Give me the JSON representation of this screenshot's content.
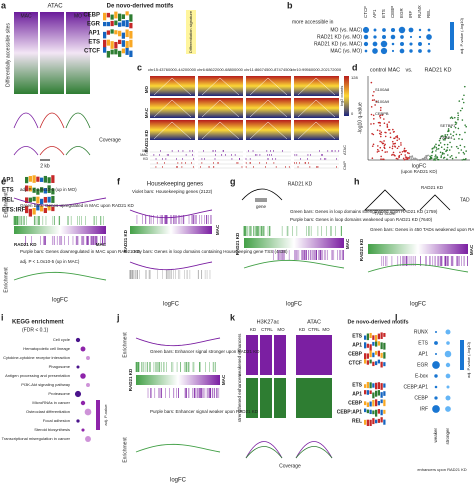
{
  "a": {
    "letter": "a",
    "atac": "ATAC",
    "mac": "MAC",
    "mo": "MO",
    "ylabel": "Differentially accessible sites",
    "coverage": "Coverage",
    "scale": "2 kb",
    "known": [
      "AP1",
      "ETS",
      "REL",
      "ETS:IRF"
    ],
    "denovo_title": "De novo-derived motifs",
    "denovo": [
      "CEBP",
      "EGR",
      "AP1",
      "ETS",
      "CTCF"
    ],
    "signature": "Differentiation signature"
  },
  "b": {
    "letter": "b",
    "header": "more accessible in",
    "rows": [
      "MO (vs. MAC)",
      "RAD21 KD (vs. MO)",
      "RAD21 KD (vs. MAC)",
      "MAC (vs. MO)"
    ],
    "cols": [
      "CTCF",
      "AP1",
      "ETS",
      "CEBP",
      "EGR",
      "IRF",
      "RUNX",
      "REL"
    ],
    "legend": "adj. P-value (-log10)"
  },
  "c": {
    "letter": "c",
    "regions": [
      "chr15:43760000-44200000",
      "chr6:68622000-68800000",
      "chr11:86674500-87474500",
      "chr10:99560000-202172000"
    ],
    "rows": [
      "MO",
      "MAC",
      "RAD21 KD"
    ],
    "tracks": [
      "MO",
      "MAC",
      "KD"
    ],
    "atac": "ATAC",
    "chip": "ChIP",
    "cmax": "128",
    "cmin": "0",
    "clabel": "log2 counts"
  },
  "d": {
    "letter": "d",
    "ctrl": "control MAC",
    "vs": "vs.",
    "kd": "RAD21 KD",
    "ylabel": "-log10 q-value",
    "xlabel": "logFC",
    "xsub": "(upon RAD21 KD)",
    "genes": [
      "S100A8",
      "S100A9",
      "CEBPB",
      "SETBP1",
      "FABP4"
    ]
  },
  "e": {
    "letter": "e",
    "ylabel": "Enrichment",
    "p1": "adj. P < 2.9x10-5 (up in MO)",
    "green": "Green bars: Genes upregulated in MAC upon RAD21 KD",
    "purple": "Purple bars: Genes downregulated in MAC upon RAD21 KD",
    "p2": "adj. P < 1.0x10-5 (up in MAC)",
    "xlabel": "logFC",
    "mac": "MAC",
    "kd": "RAD21 KD"
  },
  "f": {
    "letter": "f",
    "title": "Housekeeping genes",
    "violet": "Violet bars: Housekeeping genes (2122)",
    "gray": "Gray bars: Genes in loop domains containing Housekeeping gene TSS (4438)",
    "xlabel": "logFC",
    "mac": "MAC",
    "kd": "RAD21 KD"
  },
  "g": {
    "letter": "g",
    "kd": "RAD21 KD",
    "gene": "gene",
    "green": "Green bars: Genes in loop domains strengthened upon RAD21 KD (1759)",
    "purple": "Purple bars: Genes in loop domains weakened upon RAD21 KD (7640)",
    "xlabel": "logFC",
    "mac": "MAC"
  },
  "h": {
    "letter": "h",
    "score": "TAD score",
    "tad": "TAD",
    "kd": "RAD21 KD",
    "green": "Green bars: Genes in 450 TADs weakened upon RAD21 KD (3322)",
    "xlabel": "logFC",
    "mac": "MAC"
  },
  "i": {
    "letter": "i",
    "title": "KEGG enrichment",
    "sub": "(FDR < 0.1)",
    "pathways": [
      "Cell cycle",
      "Hematopoietic cell lineage",
      "Cytokine-cytokine receptor interaction",
      "Phagosome",
      "Antigen processing and presentation",
      "PI3K-Akt signaling pathway",
      "Proteasome",
      "MicroRNAs in cancer",
      "Osteoclast differentiation",
      "Focal adhesion",
      "Steroid biosynthesis",
      "Transcriptional misregulation in cancer"
    ],
    "legend": "adj. P-value"
  },
  "j": {
    "letter": "j",
    "ylabel": "Enrichment",
    "green": "Green bars: Enhancer signal stronger upon RAD21 KD",
    "purple": "Purple bars: Enhancer signal weaker upon RAD21 KD",
    "xlabel": "logFC",
    "mac": "MAC",
    "kd": "RAD21 KD"
  },
  "k": {
    "letter": "k",
    "h3k27ac": "H3K27ac",
    "atac": "ATAC",
    "cols": [
      "KD",
      "CTRL",
      "MO"
    ],
    "weak": "weakened enhancers",
    "strong": "strengthened enhancers",
    "coverage": "Coverage",
    "denovo_title": "De novo-derived motifs",
    "weak_motifs": [
      "ETS",
      "AP1",
      "CEBP",
      "CTCF"
    ],
    "strong_motifs": [
      "ETS",
      "AP1",
      "CEBP",
      "CEBP:AP1",
      "REL"
    ]
  },
  "l": {
    "letter": "l",
    "rows": [
      "RUNX",
      "ETS",
      "AP1",
      "EGR",
      "E-box",
      "CEBP:AP1",
      "CEBP",
      "IRF"
    ],
    "weaker": "weaker",
    "stronger": "stronger",
    "sub": "enhancers upon RAD21 KD",
    "legend": "adj. P-value (-log10)"
  }
}
